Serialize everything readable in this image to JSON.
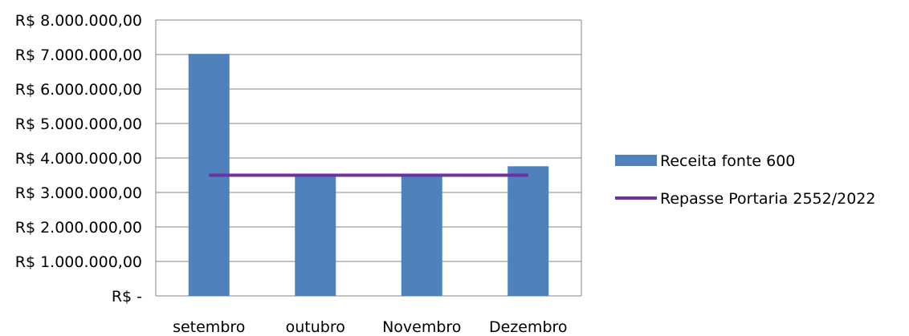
{
  "chart_data": {
    "type": "bar",
    "categories": [
      "setembro",
      "outubro",
      "Novembro",
      "Dezembro"
    ],
    "series": [
      {
        "name": "Receita fonte 600",
        "kind": "bar",
        "color": "#4f81bd",
        "values": [
          7020000,
          3500000,
          3500000,
          3760000
        ]
      },
      {
        "name": "Repasse Portaria 2552/2022",
        "kind": "line",
        "color": "#7030a0",
        "values": [
          3500000,
          3500000,
          3500000,
          3500000
        ]
      }
    ],
    "ylim": [
      0,
      8000000
    ],
    "y_ticks": [
      0,
      1000000,
      2000000,
      3000000,
      4000000,
      5000000,
      6000000,
      7000000,
      8000000
    ],
    "y_tick_labels": [
      "R$ -",
      "R$ 1.000.000,00",
      "R$ 2.000.000,00",
      "R$ 3.000.000,00",
      "R$ 4.000.000,00",
      "R$ 5.000.000,00",
      "R$ 6.000.000,00",
      "R$ 7.000.000,00",
      "R$ 8.000.000,00"
    ],
    "grid": true,
    "legend": "right"
  }
}
